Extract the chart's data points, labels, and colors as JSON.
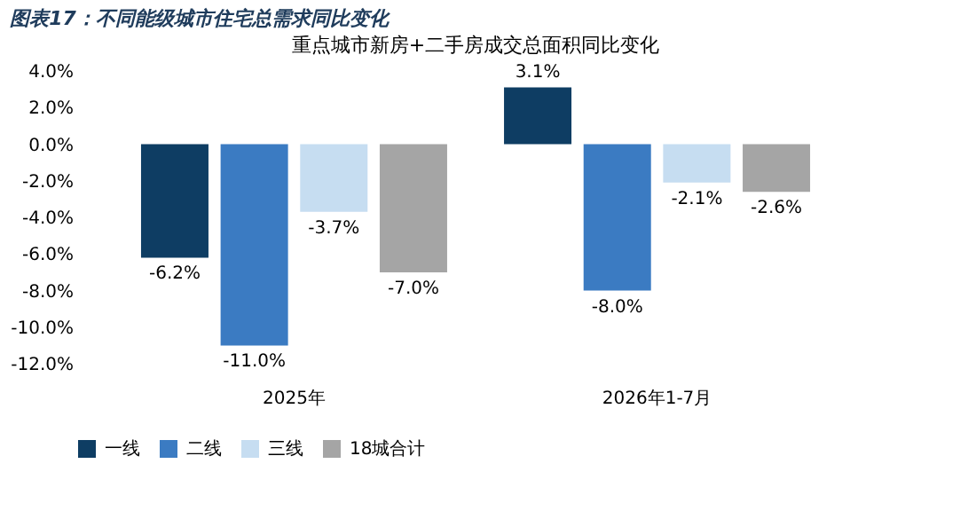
{
  "chart_data": {
    "type": "bar",
    "title": "图表17：不同能级城市住宅总需求同比变化",
    "subtitle": "重点城市新房+二手房成交总面积同比变化",
    "categories": [
      "2025年",
      "2026年1-7月"
    ],
    "series": [
      {
        "name": "一线",
        "color": "#0e3d63",
        "values": [
          -6.2,
          3.1
        ],
        "value_labels": [
          "-6.2%",
          "3.1%"
        ]
      },
      {
        "name": "二线",
        "color": "#3b7bc2",
        "values": [
          -11.0,
          -8.0
        ],
        "value_labels": [
          "-11.0%",
          "-8.0%"
        ]
      },
      {
        "name": "三线",
        "color": "#c6ddf1",
        "values": [
          -3.7,
          -2.1
        ],
        "value_labels": [
          "-3.7%",
          "-2.1%"
        ]
      },
      {
        "name": "18城合计",
        "color": "#a5a5a5",
        "values": [
          -7.0,
          -2.6
        ],
        "value_labels": [
          "-7.0%",
          "-2.6%"
        ]
      }
    ],
    "ylim": [
      -12,
      4
    ],
    "yticks": [
      {
        "value": -12,
        "label": "-12.0%"
      },
      {
        "value": -10,
        "label": "-10.0%"
      },
      {
        "value": -8,
        "label": "-8.0%"
      },
      {
        "value": -6,
        "label": "-6.0%"
      },
      {
        "value": -4,
        "label": "-4.0%"
      },
      {
        "value": -2,
        "label": "-2.0%"
      },
      {
        "value": 0,
        "label": "0.0%"
      },
      {
        "value": 2,
        "label": "2.0%"
      },
      {
        "value": 4,
        "label": "4.0%"
      }
    ],
    "legend": "bottom",
    "grid": false
  }
}
